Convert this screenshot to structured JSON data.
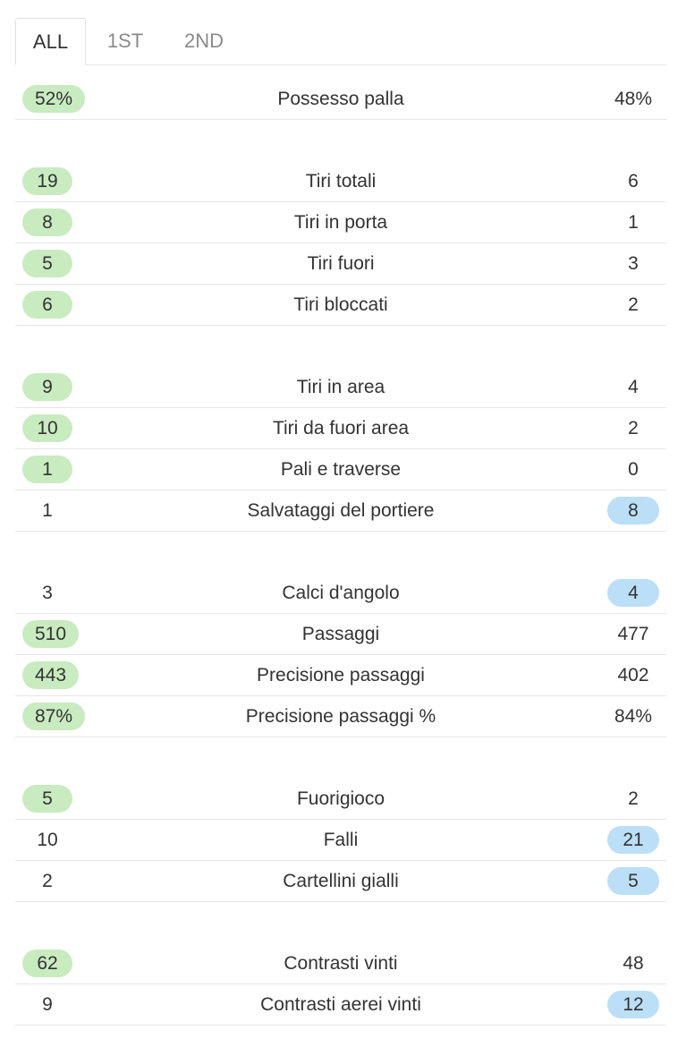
{
  "tabs": [
    {
      "label": "ALL"
    },
    {
      "label": "1ST"
    },
    {
      "label": "2ND"
    }
  ],
  "colors": {
    "home_highlight": "#c8ebc0",
    "away_highlight": "#bcdff8",
    "divider": "#e6e6e6"
  },
  "stats": [
    {
      "label": "Possesso palla",
      "home": "52%",
      "away": "48%",
      "leader": "home"
    },
    {
      "label": "Tiri totali",
      "home": "19",
      "away": "6",
      "leader": "home"
    },
    {
      "label": "Tiri in porta",
      "home": "8",
      "away": "1",
      "leader": "home"
    },
    {
      "label": "Tiri fuori",
      "home": "5",
      "away": "3",
      "leader": "home"
    },
    {
      "label": "Tiri bloccati",
      "home": "6",
      "away": "2",
      "leader": "home"
    },
    {
      "label": "Tiri in area",
      "home": "9",
      "away": "4",
      "leader": "home"
    },
    {
      "label": "Tiri da fuori area",
      "home": "10",
      "away": "2",
      "leader": "home"
    },
    {
      "label": "Pali e traverse",
      "home": "1",
      "away": "0",
      "leader": "home"
    },
    {
      "label": "Salvataggi del portiere",
      "home": "1",
      "away": "8",
      "leader": "away"
    },
    {
      "label": "Calci d'angolo",
      "home": "3",
      "away": "4",
      "leader": "away"
    },
    {
      "label": "Passaggi",
      "home": "510",
      "away": "477",
      "leader": "home"
    },
    {
      "label": "Precisione passaggi",
      "home": "443",
      "away": "402",
      "leader": "home"
    },
    {
      "label": "Precisione passaggi %",
      "home": "87%",
      "away": "84%",
      "leader": "home"
    },
    {
      "label": "Fuorigioco",
      "home": "5",
      "away": "2",
      "leader": "home"
    },
    {
      "label": "Falli",
      "home": "10",
      "away": "21",
      "leader": "away"
    },
    {
      "label": "Cartellini gialli",
      "home": "2",
      "away": "5",
      "leader": "away"
    },
    {
      "label": "Contrasti vinti",
      "home": "62",
      "away": "48",
      "leader": "home"
    },
    {
      "label": "Contrasti aerei vinti",
      "home": "9",
      "away": "12",
      "leader": "away"
    }
  ]
}
